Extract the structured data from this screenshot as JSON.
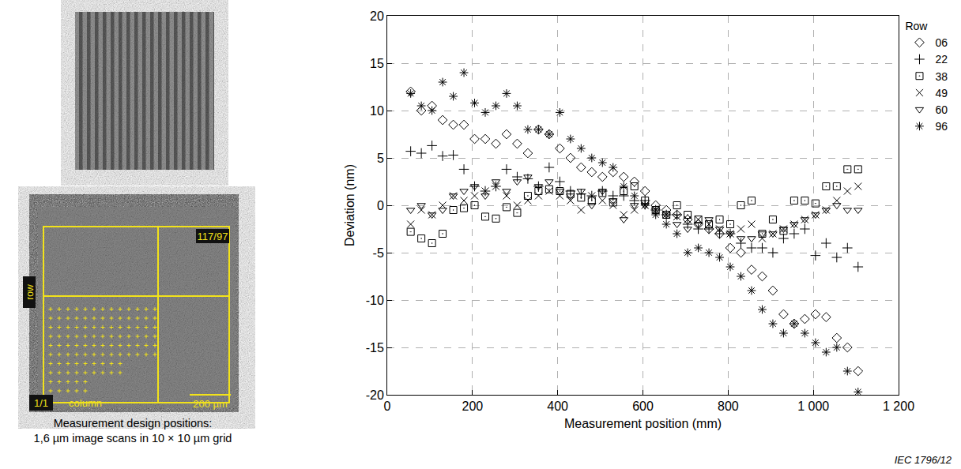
{
  "chart_data": {
    "type": "scatter",
    "x_label": "Measurement position (mm)",
    "y_label": "Deviation (nm)",
    "legend_title": "Row",
    "legend": "right",
    "grid": true,
    "xlim": [
      0,
      1200
    ],
    "xticks": [
      0,
      200,
      400,
      600,
      800,
      {
        "value": 1000,
        "label": "1 000"
      },
      {
        "value": 1200,
        "label": "1 200"
      }
    ],
    "ylim": [
      -20,
      20
    ],
    "yticks": [
      -20,
      -15,
      -10,
      -5,
      0,
      5,
      10,
      15,
      20
    ],
    "x": [
      55,
      80,
      105,
      130,
      155,
      180,
      205,
      230,
      255,
      280,
      305,
      330,
      355,
      380,
      405,
      430,
      455,
      480,
      505,
      530,
      555,
      580,
      605,
      630,
      655,
      680,
      705,
      730,
      755,
      780,
      805,
      830,
      855,
      880,
      905,
      930,
      955,
      980,
      1005,
      1030,
      1055,
      1080,
      1105
    ],
    "series": [
      {
        "name": "06",
        "color": "#000000",
        "marker": "diamond",
        "values": [
          12,
          10,
          10.5,
          9,
          8.5,
          8.5,
          7,
          7,
          6.5,
          7.5,
          6.5,
          5.5,
          8,
          7.5,
          6,
          5,
          4,
          3.5,
          3,
          3.5,
          3,
          2.5,
          1.5,
          0,
          -0.5,
          -1,
          -1.5,
          -2,
          -2.5,
          -3,
          -4.5,
          -5,
          -6.8,
          -7.5,
          -9,
          -11.5,
          -12.5,
          -12,
          -11.5,
          -11.8,
          -14,
          -15,
          -17.5
        ]
      },
      {
        "name": "22",
        "color": "#000000",
        "marker": "cross",
        "values": [
          5.7,
          5.5,
          6.3,
          5.2,
          5.3,
          3.8,
          2,
          1.5,
          2,
          3.8,
          3,
          2.8,
          2,
          4,
          2.5,
          1.5,
          1.2,
          1,
          1.5,
          1,
          1,
          0.5,
          0.5,
          -0.5,
          -1,
          -1,
          -2,
          -2.5,
          -2.5,
          -3,
          -3,
          -4,
          -4.5,
          -4.5,
          -5,
          -3.5,
          -3,
          -2.5,
          -5.3,
          -4,
          -5.5,
          -4.5,
          -6.5
        ]
      },
      {
        "name": "38",
        "color": "#000000",
        "marker": "square-dot",
        "values": [
          -2.8,
          -3.5,
          -4,
          -3,
          -0.5,
          -0.3,
          0,
          -1.2,
          -1.4,
          -0.2,
          -0.8,
          1,
          1.5,
          1.7,
          1.5,
          1.2,
          0.8,
          0.5,
          1.3,
          0.3,
          1.5,
          2,
          0.5,
          -0.5,
          -1,
          0,
          -1,
          -1.5,
          -2,
          -1.5,
          -2,
          0,
          0.5,
          -3,
          -1.5,
          -2.7,
          0.5,
          0.5,
          0.2,
          2,
          2,
          3.8,
          3.8
        ]
      },
      {
        "name": "49",
        "color": "#000000",
        "marker": "x",
        "values": [
          -2,
          -0.5,
          -1,
          0,
          1,
          0.5,
          1,
          1.5,
          2,
          1,
          0,
          0.5,
          1,
          1.5,
          1,
          0.5,
          -0.5,
          1,
          0.5,
          0,
          -1,
          -0.5,
          0,
          -0.5,
          -1,
          -1.2,
          -1.5,
          -1.5,
          -2,
          -2.5,
          -3,
          -2.5,
          -2,
          -3.5,
          -3,
          -2.5,
          -2,
          -1.5,
          -1,
          -0.5,
          0.5,
          1.5,
          2
        ]
      },
      {
        "name": "60",
        "color": "#000000",
        "marker": "triangle-down",
        "values": [
          -0.5,
          0,
          -1,
          -0.5,
          1,
          1.5,
          2,
          1,
          2.5,
          1.5,
          2.5,
          3,
          2,
          2.5,
          1.5,
          1,
          1.5,
          0,
          1.5,
          0.5,
          -1.5,
          0,
          0,
          -0.5,
          -1,
          -2,
          -2.5,
          -2,
          -1.5,
          -2.5,
          -3,
          -3.5,
          -3.5,
          -3,
          -3,
          -2.5,
          -2,
          -1.5,
          -1,
          -0.5,
          0,
          -0.5,
          -0.5
        ]
      },
      {
        "name": "96",
        "color": "#000000",
        "marker": "asterisk",
        "values": [
          11.8,
          10.5,
          10,
          13,
          11.5,
          14,
          10.8,
          9.8,
          10.5,
          11.8,
          10.5,
          8,
          8,
          7.5,
          9.8,
          7,
          6,
          5,
          4.5,
          4,
          2,
          1,
          0,
          -1,
          -2,
          -3,
          -5,
          -4.5,
          -5,
          -5.5,
          -6.5,
          -7.5,
          -9,
          -11,
          -12.5,
          -13.5,
          -12.5,
          -13.5,
          -14.5,
          -15.5,
          -15,
          -17.5,
          -19.7
        ]
      }
    ]
  },
  "image_labels": {
    "grid_corner_top": "117/97",
    "row": "row",
    "grid_corner_bottom": "1/1",
    "column": "column",
    "scale_bar": "200 µm"
  },
  "caption": [
    "Measurement design positions:",
    "1,6 µm image scans in 10 × 10 µm grid"
  ],
  "source": "IEC 1796/12"
}
